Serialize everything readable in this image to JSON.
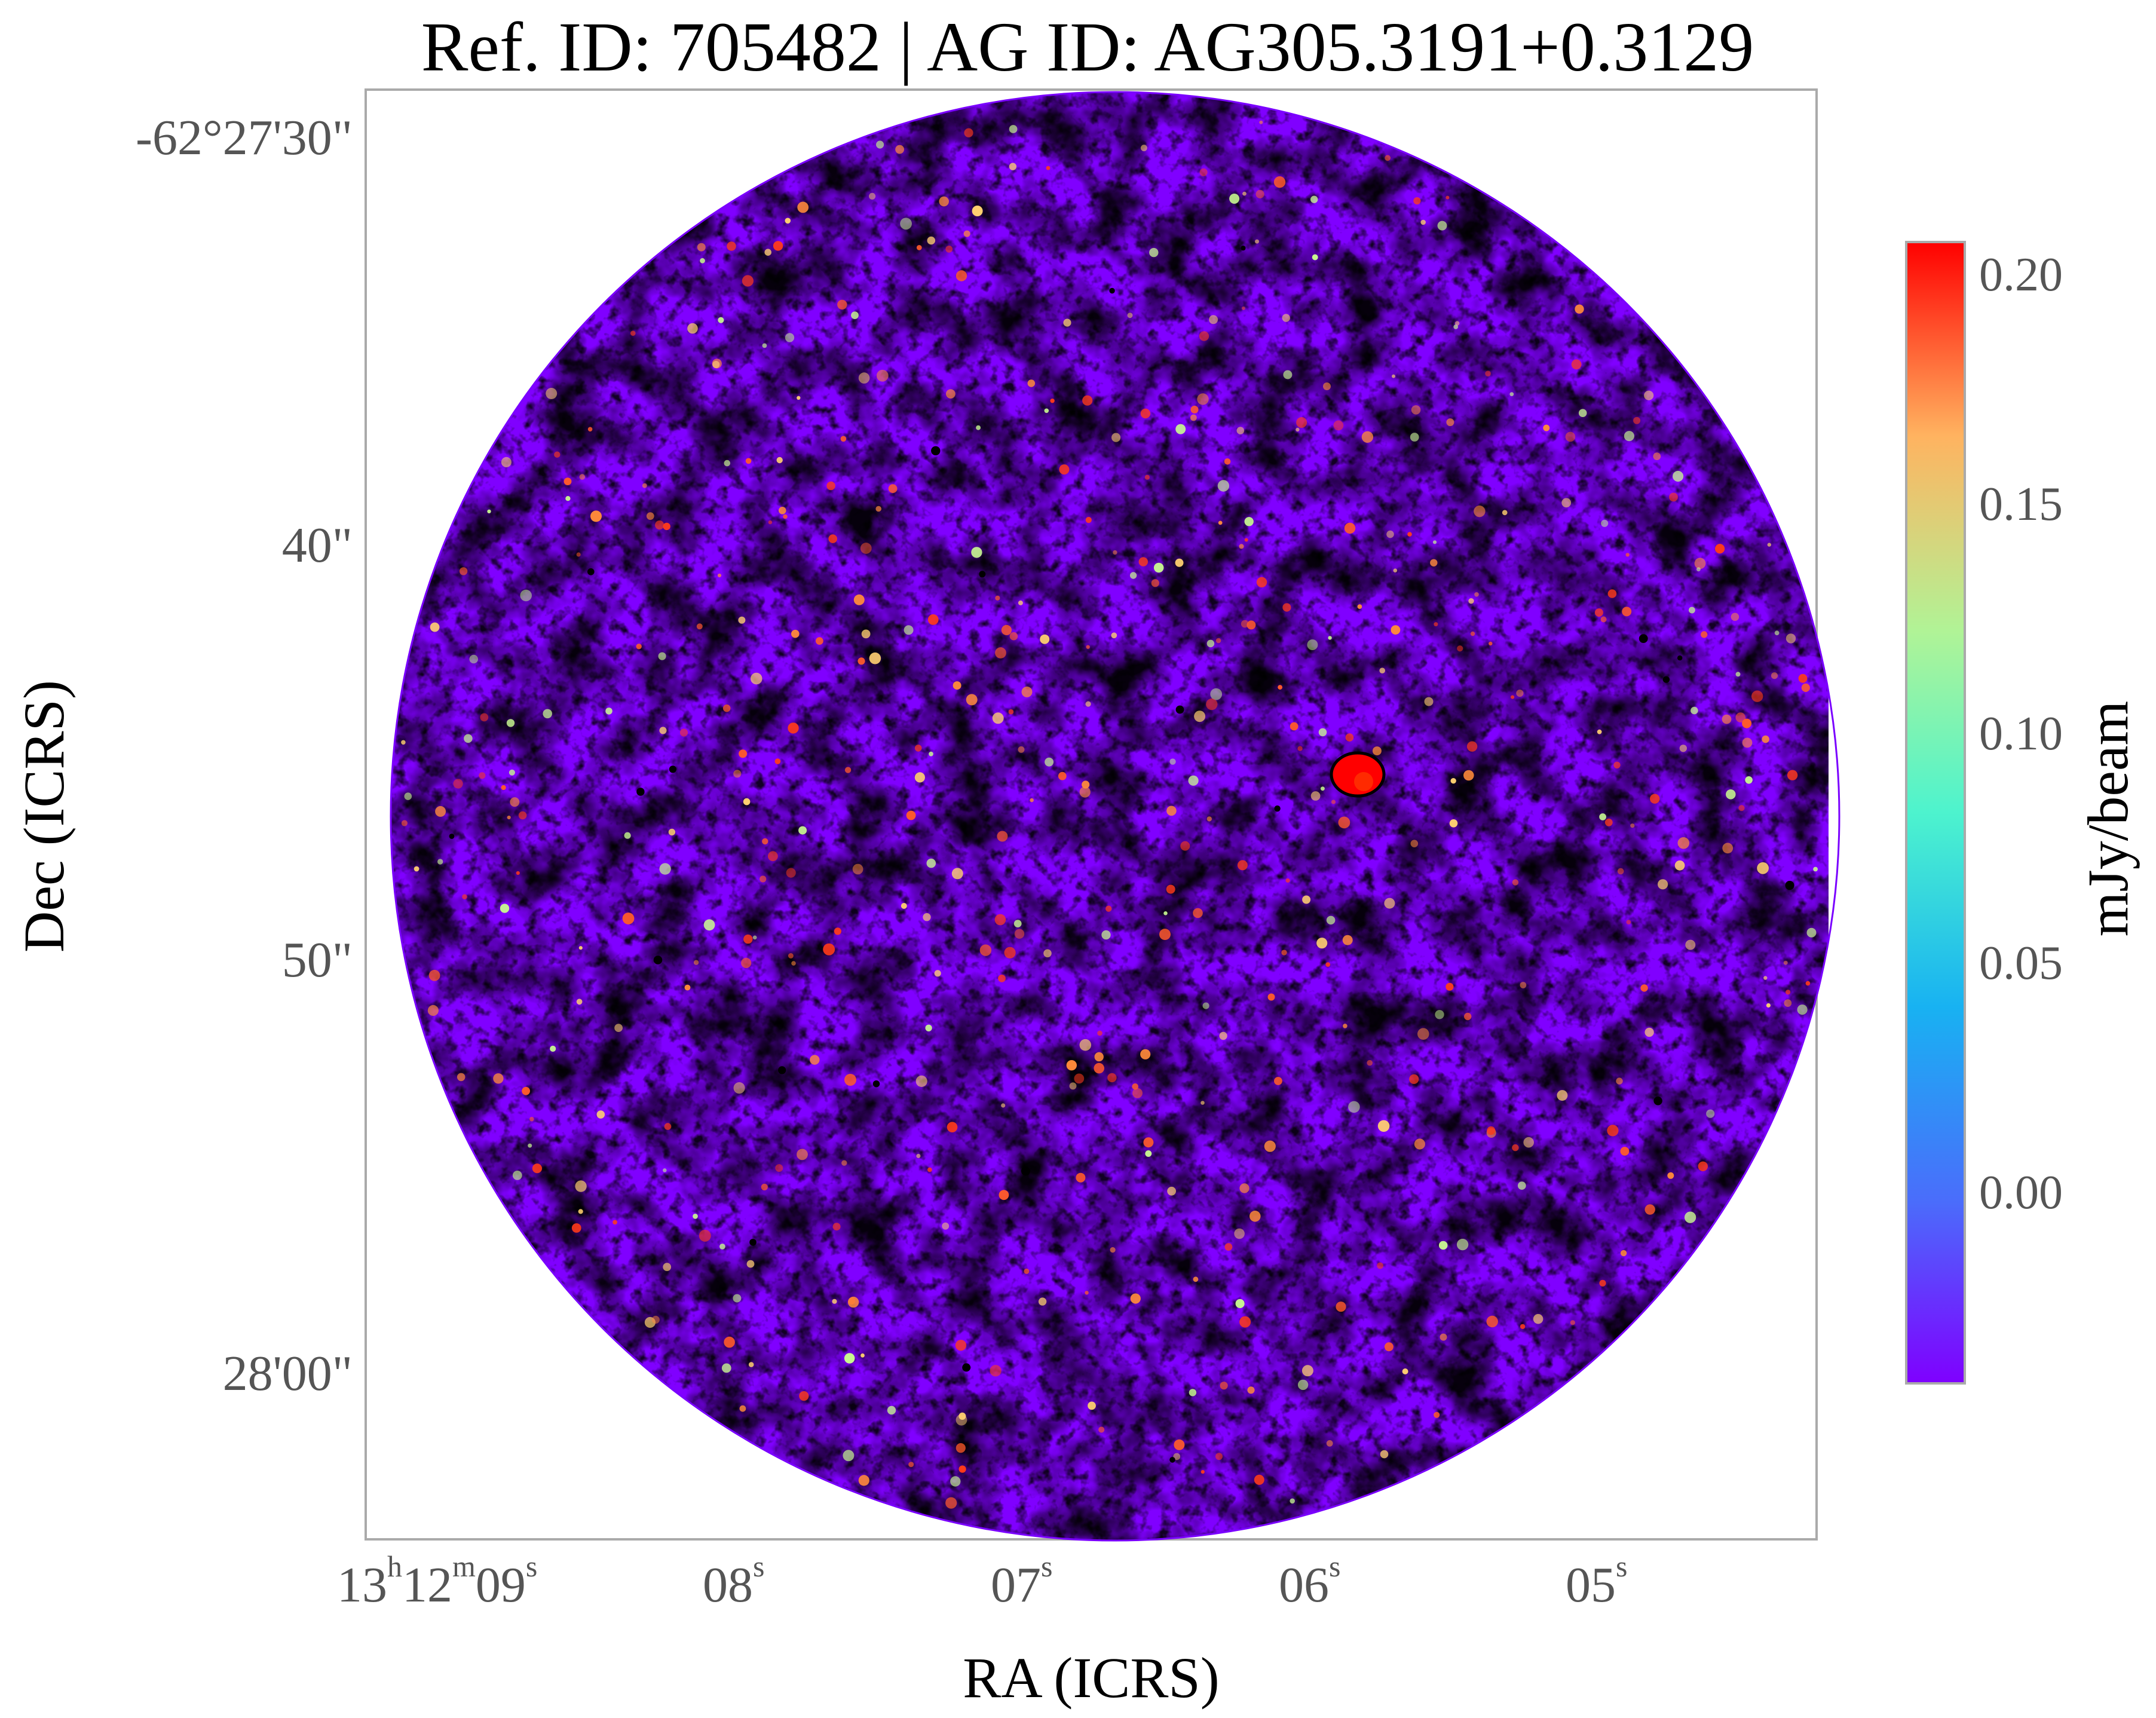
{
  "title": "Ref. ID: 705482 | AG ID: AG305.3191+0.3129",
  "axes": {
    "x_label": "RA (ICRS)",
    "y_label": "Dec (ICRS)",
    "x_ticks": [
      {
        "main": "13",
        "sup1": "h",
        "mid": "12",
        "sup2": "m",
        "last": "09",
        "sup3": "s"
      },
      {
        "main": "08",
        "sup": "s"
      },
      {
        "main": "07",
        "sup": "s"
      },
      {
        "main": "06",
        "sup": "s"
      },
      {
        "main": "05",
        "sup": "s"
      }
    ],
    "y_ticks": [
      "-62°27'30\"",
      "40\"",
      "50\"",
      "28'00\""
    ]
  },
  "colorbar": {
    "label": "mJy/beam",
    "ticks": [
      "0.20",
      "0.15",
      "0.10",
      "0.05",
      "0.00"
    ],
    "colormap": "rainbow",
    "colors": [
      "#7f00ff",
      "#4a6dfb",
      "#18b2f2",
      "#4df3ce",
      "#b1f396",
      "#ffb360",
      "#ff0000"
    ]
  },
  "image": {
    "description_shape": "circular field",
    "background_color": "#8000ff"
  }
}
